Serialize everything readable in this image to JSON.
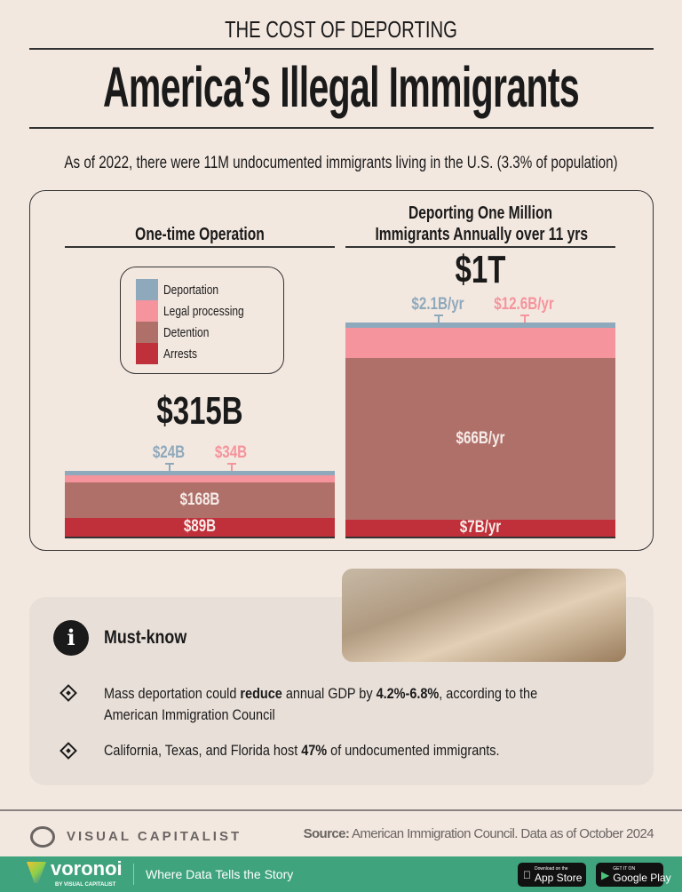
{
  "header": {
    "kicker": "THE COST OF DEPORTING",
    "title": "America’s Illegal Immigrants",
    "subtitle": "As of 2022, there were 11M undocumented immigrants living in the U.S. (3.3% of population)"
  },
  "colors": {
    "Deportation": "#8fa9bc",
    "Legal processing": "#f5949c",
    "Detention": "#b0706a",
    "Arrests": "#c0303a",
    "background": "#f3e8e0",
    "footer": "#3fa37d"
  },
  "chart_data": [
    {
      "type": "bar",
      "stacked": true,
      "title": "One-time Operation",
      "total_label": "$315B",
      "unit": "USD billions",
      "series": [
        {
          "name": "Arrests",
          "value": 89,
          "label": "$89B"
        },
        {
          "name": "Detention",
          "value": 168,
          "label": "$168B"
        },
        {
          "name": "Legal processing",
          "value": 34,
          "label": "$34B"
        },
        {
          "name": "Deportation",
          "value": 24,
          "label": "$24B"
        }
      ]
    },
    {
      "type": "bar",
      "stacked": true,
      "title_line1": "Deporting One Million",
      "title_line2": "Immigrants Annually over 11 yrs",
      "total_label": "$1T",
      "unit": "USD billions per year",
      "series": [
        {
          "name": "Arrests",
          "value": 7,
          "label": "$7B/yr"
        },
        {
          "name": "Detention",
          "value": 66,
          "label": "$66B/yr"
        },
        {
          "name": "Legal processing",
          "value": 12.6,
          "label": "$12.6B/yr"
        },
        {
          "name": "Deportation",
          "value": 2.1,
          "label": "$2.1B/yr"
        }
      ]
    }
  ],
  "legend": [
    "Deportation",
    "Legal processing",
    "Detention",
    "Arrests"
  ],
  "mustknow": {
    "title": "Must-know",
    "icon": "info-icon",
    "b1": {
      "pre": "Mass deportation could ",
      "b1": "reduce",
      "mid": " annual GDP by ",
      "b2": "4.2%-6.8%",
      "post": ", according to the American Immigration Council"
    },
    "b2": {
      "pre": "California, Texas, and Florida host ",
      "b": "47%",
      "post": " of undocumented immigrants."
    }
  },
  "source": {
    "label": "Source:",
    "text": " American Immigration Council. Data as of October 2024"
  },
  "brand": "VISUAL CAPITALIST",
  "footer": {
    "logo": "voronoi",
    "by": "BY VISUAL CAPITALIST",
    "tagline": "Where Data Tells the Story",
    "appstore_small": "Download on the",
    "appstore": "App Store",
    "gplay_small": "GET IT ON",
    "gplay": "Google Play"
  }
}
